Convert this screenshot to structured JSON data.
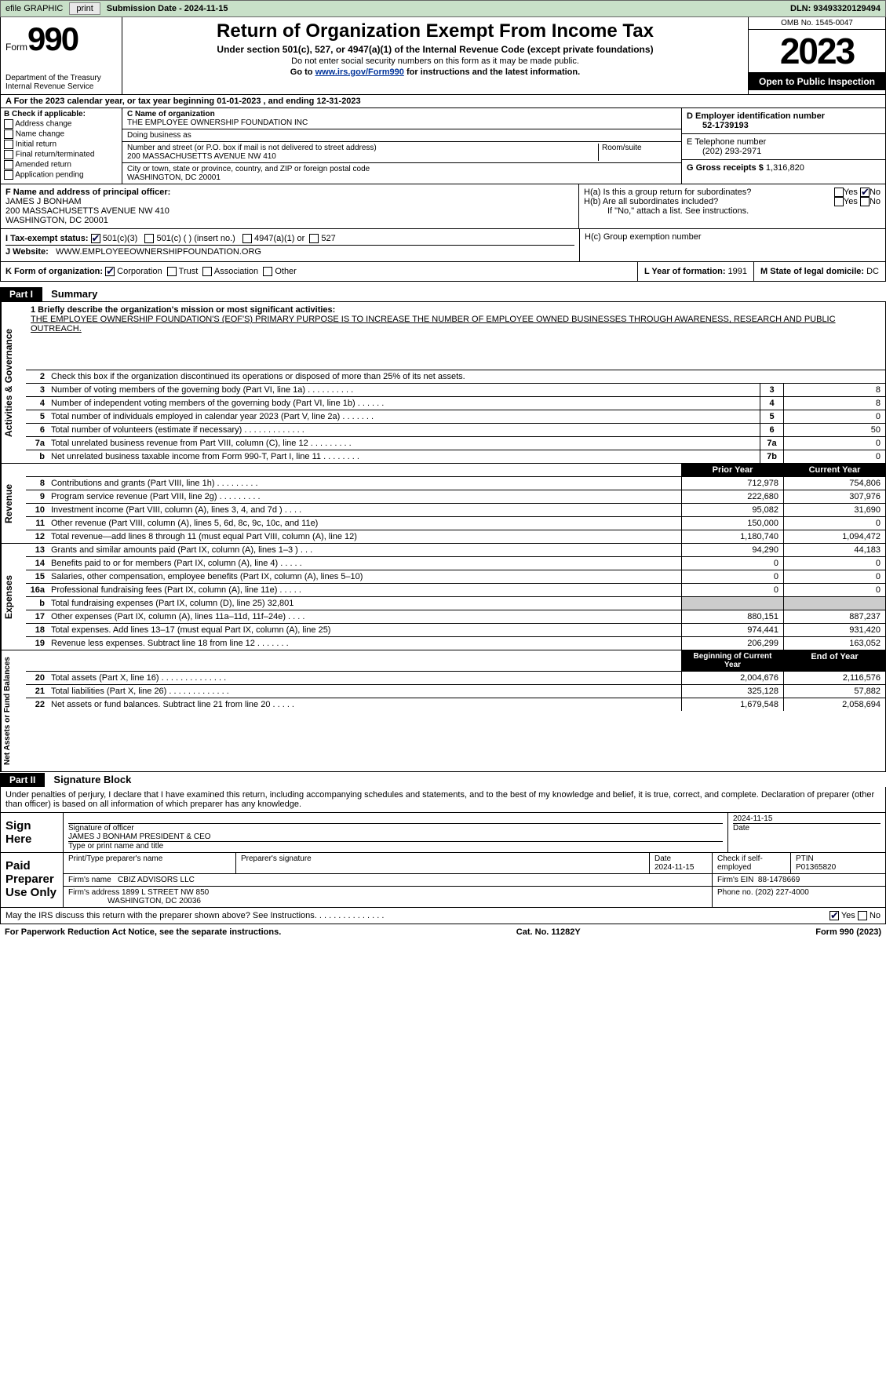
{
  "topbar": {
    "efile": "efile GRAPHIC",
    "print": "print",
    "submission_label": "Submission Date - ",
    "submission_date": "2024-11-15",
    "dln_label": "DLN: ",
    "dln": "93493320129494"
  },
  "header": {
    "form_word": "Form",
    "form_num": "990",
    "title": "Return of Organization Exempt From Income Tax",
    "sub1": "Under section 501(c), 527, or 4947(a)(1) of the Internal Revenue Code (except private foundations)",
    "sub2": "Do not enter social security numbers on this form as it may be made public.",
    "sub3_pre": "Go to ",
    "sub3_link": "www.irs.gov/Form990",
    "sub3_post": " for instructions and the latest information.",
    "dept": "Department of the Treasury\nInternal Revenue Service",
    "omb": "OMB No. 1545-0047",
    "year": "2023",
    "open": "Open to Public Inspection"
  },
  "period": {
    "text_a": "A For the 2023 calendar year, or tax year beginning ",
    "begin": "01-01-2023",
    "text_mid": " , and ending ",
    "end": "12-31-2023"
  },
  "boxB": {
    "label": "B Check if applicable:",
    "items": [
      "Address change",
      "Name change",
      "Initial return",
      "Final return/terminated",
      "Amended return",
      "Application pending"
    ]
  },
  "boxC": {
    "name_label": "C Name of organization",
    "name": "THE EMPLOYEE OWNERSHIP FOUNDATION INC",
    "dba_label": "Doing business as",
    "dba": "",
    "addr_label": "Number and street (or P.O. box if mail is not delivered to street address)",
    "room_label": "Room/suite",
    "addr": "200 MASSACHUSETTS AVENUE NW 410",
    "city_label": "City or town, state or province, country, and ZIP or foreign postal code",
    "city": "WASHINGTON, DC  20001"
  },
  "boxD": {
    "label": "D Employer identification number",
    "ein": "52-1739193"
  },
  "boxE": {
    "label": "E Telephone number",
    "phone": "(202) 293-2971"
  },
  "boxG": {
    "label": "G Gross receipts $ ",
    "amt": "1,316,820"
  },
  "boxF": {
    "label": "F  Name and address of principal officer:",
    "name": "JAMES J BONHAM",
    "addr1": "200 MASSACHUSETTS AVENUE NW 410",
    "addr2": "WASHINGTON, DC  20001"
  },
  "boxH": {
    "a_label": "H(a)  Is this a group return for subordinates?",
    "b_label": "H(b)  Are all subordinates included?",
    "b_note": "If \"No,\" attach a list. See instructions.",
    "c_label": "H(c)  Group exemption number",
    "yes": "Yes",
    "no": "No"
  },
  "boxI": {
    "label": "I   Tax-exempt status:",
    "opt1": "501(c)(3)",
    "opt2": "501(c) (  ) (insert no.)",
    "opt3": "4947(a)(1) or",
    "opt4": "527"
  },
  "boxJ": {
    "label": "J   Website:",
    "url": "WWW.EMPLOYEEOWNERSHIPFOUNDATION.ORG"
  },
  "boxK": {
    "label": "K Form of organization:",
    "opt1": "Corporation",
    "opt2": "Trust",
    "opt3": "Association",
    "opt4": "Other"
  },
  "boxL": {
    "label": "L Year of formation: ",
    "val": "1991"
  },
  "boxM": {
    "label": "M State of legal domicile: ",
    "val": "DC"
  },
  "part1": {
    "hdr": "Part I",
    "title": "Summary"
  },
  "gov": {
    "side": "Activities & Governance",
    "l1_label": "1   Briefly describe the organization's mission or most significant activities:",
    "l1_text": "THE EMPLOYEE OWNERSHIP FOUNDATION'S (EOF'S) PRIMARY PURPOSE IS TO INCREASE THE NUMBER OF EMPLOYEE OWNED BUSINESSES THROUGH AWARENESS, RESEARCH AND PUBLIC OUTREACH.",
    "l2": "Check this box     if the organization discontinued its operations or disposed of more than 25% of its net assets.",
    "rows": [
      {
        "n": "3",
        "d": "Number of voting members of the governing body (Part VI, line 1a)  .    .    .    .    .    .    .    .    .    .",
        "c": "3",
        "v": "8"
      },
      {
        "n": "4",
        "d": "Number of independent voting members of the governing body (Part VI, line 1b)  .    .    .    .    .    .",
        "c": "4",
        "v": "8"
      },
      {
        "n": "5",
        "d": "Total number of individuals employed in calendar year 2023 (Part V, line 2a)  .    .    .    .    .    .    .",
        "c": "5",
        "v": "0"
      },
      {
        "n": "6",
        "d": "Total number of volunteers (estimate if necessary)  .    .    .    .    .    .    .    .    .    .    .    .    .",
        "c": "6",
        "v": "50"
      },
      {
        "n": "7a",
        "d": "Total unrelated business revenue from Part VIII, column (C), line 12  .    .    .    .    .    .    .    .    .",
        "c": "7a",
        "v": "0"
      },
      {
        "n": " b",
        "d": "Net unrelated business taxable income from Form 990-T, Part I, line 11  .    .    .    .    .    .    .    .",
        "c": "7b",
        "v": "0"
      }
    ]
  },
  "rev": {
    "side": "Revenue",
    "hdr_prior": "Prior Year",
    "hdr_curr": "Current Year",
    "rows": [
      {
        "n": "8",
        "d": "Contributions and grants (Part VIII, line 1h)   .    .    .    .    .    .    .    .    .",
        "p": "712,978",
        "c": "754,806"
      },
      {
        "n": "9",
        "d": "Program service revenue (Part VIII, line 2g)   .    .    .    .    .    .    .    .    .",
        "p": "222,680",
        "c": "307,976"
      },
      {
        "n": "10",
        "d": "Investment income (Part VIII, column (A), lines 3, 4, and 7d )   .    .    .    .",
        "p": "95,082",
        "c": "31,690"
      },
      {
        "n": "11",
        "d": "Other revenue (Part VIII, column (A), lines 5, 6d, 8c, 9c, 10c, and 11e)",
        "p": "150,000",
        "c": "0"
      },
      {
        "n": "12",
        "d": "Total revenue—add lines 8 through 11 (must equal Part VIII, column (A), line 12)",
        "p": "1,180,740",
        "c": "1,094,472"
      }
    ]
  },
  "exp": {
    "side": "Expenses",
    "rows": [
      {
        "n": "13",
        "d": "Grants and similar amounts paid (Part IX, column (A), lines 1–3 )  .    .    .",
        "p": "94,290",
        "c": "44,183"
      },
      {
        "n": "14",
        "d": "Benefits paid to or for members (Part IX, column (A), line 4)  .    .    .    .    .",
        "p": "0",
        "c": "0"
      },
      {
        "n": "15",
        "d": "Salaries, other compensation, employee benefits (Part IX, column (A), lines 5–10)",
        "p": "0",
        "c": "0"
      },
      {
        "n": "16a",
        "d": "Professional fundraising fees (Part IX, column (A), line 11e)  .    .    .    .    .",
        "p": "0",
        "c": "0"
      },
      {
        "n": " b",
        "d": "Total fundraising expenses (Part IX, column (D), line 25) 32,801",
        "p": "grey",
        "c": "grey"
      },
      {
        "n": "17",
        "d": "Other expenses (Part IX, column (A), lines 11a–11d, 11f–24e)  .    .    .    .",
        "p": "880,151",
        "c": "887,237"
      },
      {
        "n": "18",
        "d": "Total expenses. Add lines 13–17 (must equal Part IX, column (A), line 25)",
        "p": "974,441",
        "c": "931,420"
      },
      {
        "n": "19",
        "d": "Revenue less expenses. Subtract line 18 from line 12  .    .    .    .    .    .    .",
        "p": "206,299",
        "c": "163,052"
      }
    ]
  },
  "net": {
    "side": "Net Assets or Fund Balances",
    "hdr_begin": "Beginning of Current Year",
    "hdr_end": "End of Year",
    "rows": [
      {
        "n": "20",
        "d": "Total assets (Part X, line 16)  .    .    .    .    .    .    .    .    .    .    .    .    .    .",
        "p": "2,004,676",
        "c": "2,116,576"
      },
      {
        "n": "21",
        "d": "Total liabilities (Part X, line 26)  .    .    .    .    .    .    .    .    .    .    .    .    .",
        "p": "325,128",
        "c": "57,882"
      },
      {
        "n": "22",
        "d": "Net assets or fund balances. Subtract line 21 from line 20  .    .    .    .    .",
        "p": "1,679,548",
        "c": "2,058,694"
      }
    ]
  },
  "part2": {
    "hdr": "Part II",
    "title": "Signature Block"
  },
  "sig": {
    "intro": "Under penalties of perjury, I declare that I have examined this return, including accompanying schedules and statements, and to the best of my knowledge and belief, it is true, correct, and complete. Declaration of preparer (other than officer) is based on all information of which preparer has any knowledge.",
    "sign_here": "Sign Here",
    "sig_label": "Signature of officer",
    "sig_name": "JAMES J BONHAM PRESIDENT & CEO",
    "sig_type": "Type or print name and title",
    "date": "2024-11-15",
    "date_label": "Date",
    "paid": "Paid Preparer Use Only",
    "prep_name_label": "Print/Type preparer's name",
    "prep_sig_label": "Preparer's signature",
    "prep_date": "2024-11-15",
    "check_label": "Check     if self-employed",
    "ptin_label": "PTIN",
    "ptin": "P01365820",
    "firm_name_label": "Firm's name",
    "firm_name": "CBIZ ADVISORS LLC",
    "firm_ein_label": "Firm's EIN",
    "firm_ein": "88-1478669",
    "firm_addr_label": "Firm's address",
    "firm_addr1": "1899 L STREET NW 850",
    "firm_addr2": "WASHINGTON, DC  20036",
    "firm_phone_label": "Phone no.",
    "firm_phone": "(202) 227-4000",
    "discuss": "May the IRS discuss this return with the preparer shown above? See Instructions.  .    .    .    .    .    .    .    .    .    .    .    .    .    ."
  },
  "footer": {
    "pra": "For Paperwork Reduction Act Notice, see the separate instructions.",
    "cat": "Cat. No. 11282Y",
    "form": "Form 990 (2023)"
  },
  "colors": {
    "topbar_bg": "#c8e0c8",
    "black": "#000000",
    "grey": "#cccccc",
    "link": "#003399"
  }
}
